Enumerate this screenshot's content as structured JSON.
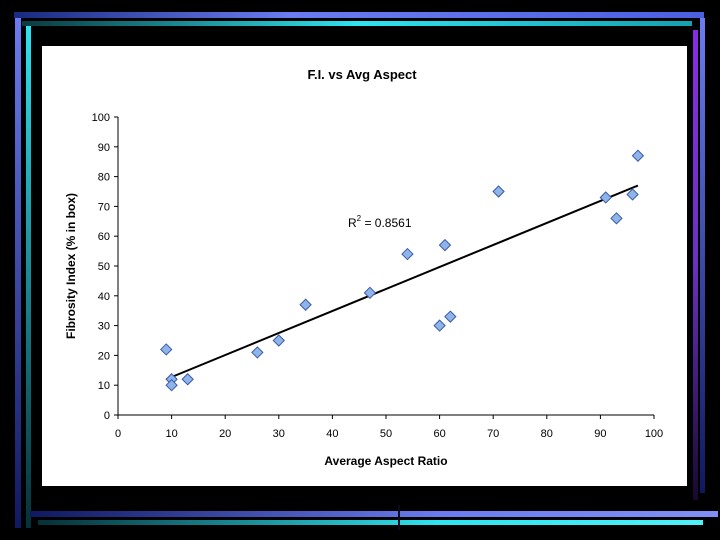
{
  "colors": {
    "background": "#000000",
    "panel": "#ffffff",
    "accent_blue": "#6a7cf0",
    "accent_cyan": "#2fe3f0",
    "accent_purple": "#8a2be2",
    "marker_fill": "#8fb4ea",
    "marker_stroke": "#3a5aa8",
    "trendline": "#000000"
  },
  "chart_data": {
    "type": "scatter",
    "title": "F.I. vs Avg Aspect",
    "xlabel": "Average Aspect Ratio",
    "ylabel": "Fibrosity Index (% in box)",
    "xlim": [
      0,
      100
    ],
    "ylim": [
      0,
      100
    ],
    "x_ticks": [
      0,
      10,
      20,
      30,
      40,
      50,
      60,
      70,
      80,
      90,
      100
    ],
    "y_ticks": [
      0,
      10,
      20,
      30,
      40,
      50,
      60,
      70,
      80,
      90,
      100
    ],
    "grid": false,
    "marker": "diamond",
    "points": [
      {
        "x": 9,
        "y": 22
      },
      {
        "x": 10,
        "y": 12
      },
      {
        "x": 10,
        "y": 10
      },
      {
        "x": 13,
        "y": 12
      },
      {
        "x": 26,
        "y": 21
      },
      {
        "x": 30,
        "y": 25
      },
      {
        "x": 35,
        "y": 37
      },
      {
        "x": 47,
        "y": 41
      },
      {
        "x": 54,
        "y": 54
      },
      {
        "x": 60,
        "y": 30
      },
      {
        "x": 61,
        "y": 57
      },
      {
        "x": 62,
        "y": 33
      },
      {
        "x": 71,
        "y": 75
      },
      {
        "x": 91,
        "y": 73
      },
      {
        "x": 93,
        "y": 66
      },
      {
        "x": 96,
        "y": 74
      },
      {
        "x": 97,
        "y": 87
      }
    ],
    "trendline": {
      "type": "linear",
      "x": [
        9,
        97
      ],
      "y": [
        12,
        77
      ]
    },
    "annotation": {
      "base": "R",
      "sup": "2",
      "rest": " = 0.8561"
    }
  }
}
